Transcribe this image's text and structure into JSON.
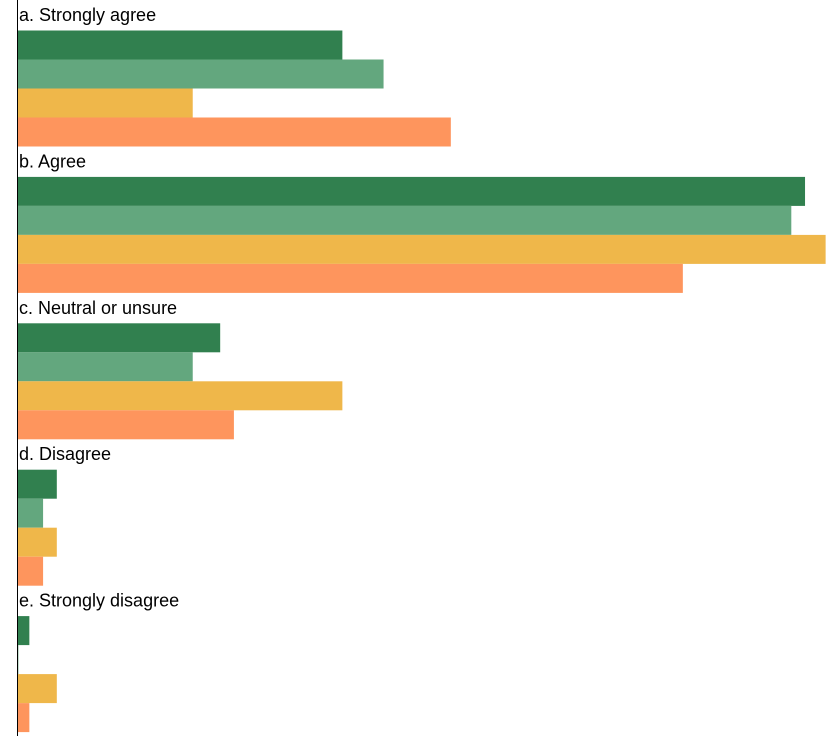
{
  "chart_data": {
    "type": "bar",
    "orientation": "horizontal",
    "categories": [
      "a. Strongly agree",
      "b. Agree",
      "c. Neutral or unsure",
      "d. Disagree",
      "e. Strongly disagree"
    ],
    "series": [
      {
        "color": "#31804f",
        "values": [
          23.7,
          57.4,
          14.8,
          2.9,
          0.9
        ]
      },
      {
        "color": "#63a77e",
        "values": [
          26.7,
          56.4,
          12.8,
          1.9,
          0.1
        ]
      },
      {
        "color": "#efb74a",
        "values": [
          12.8,
          58.9,
          23.7,
          2.9,
          2.9
        ]
      },
      {
        "color": "#fe955d",
        "values": [
          31.6,
          48.5,
          15.8,
          1.9,
          0.9
        ]
      }
    ],
    "xlim": [
      0,
      59
    ],
    "title": "",
    "xlabel": "",
    "ylabel": "",
    "grid": false,
    "legend": "none"
  }
}
